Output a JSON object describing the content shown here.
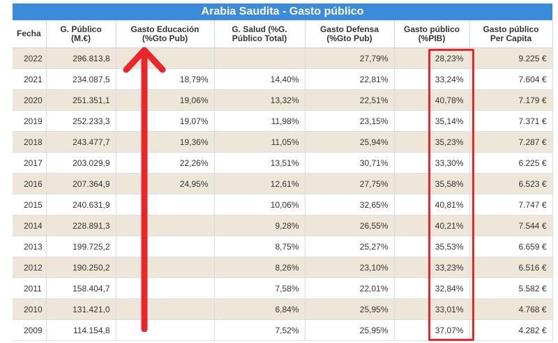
{
  "table": {
    "title": "Arabia Saudita - Gasto público",
    "headers": [
      [
        "Fecha",
        ""
      ],
      [
        "G. Público",
        "(M.€)"
      ],
      [
        "Gasto Educación",
        "(%Gto Pub)"
      ],
      [
        "G. Salud (%G.",
        "Público Total)"
      ],
      [
        "Gasto Defensa",
        "(%Gto Pub)"
      ],
      [
        "Gasto público",
        "(%PIB)"
      ],
      [
        "Gasto público",
        "Per Capita"
      ]
    ],
    "rows": [
      [
        "2022",
        "296.813,8",
        "",
        "",
        "27,79%",
        "28,23%",
        "9.225 €"
      ],
      [
        "2021",
        "234.087,5",
        "18,79%",
        "14,40%",
        "22,81%",
        "33,24%",
        "7.604 €"
      ],
      [
        "2020",
        "251.351,1",
        "19,06%",
        "13,32%",
        "22,51%",
        "40,78%",
        "7.179 €"
      ],
      [
        "2019",
        "252.233,3",
        "19,07%",
        "11,98%",
        "23,15%",
        "35,14%",
        "7.371 €"
      ],
      [
        "2018",
        "243.477,7",
        "19,36%",
        "11,05%",
        "25,94%",
        "35,23%",
        "7.287 €"
      ],
      [
        "2017",
        "203.029,9",
        "22,26%",
        "13,51%",
        "30,71%",
        "33,30%",
        "6.225 €"
      ],
      [
        "2016",
        "207.364,9",
        "24,95%",
        "12,61%",
        "27,75%",
        "35,58%",
        "6.523 €"
      ],
      [
        "2015",
        "240.631,9",
        "",
        "10,06%",
        "32,65%",
        "40,81%",
        "7.747 €"
      ],
      [
        "2014",
        "228.891,3",
        "",
        "9,28%",
        "26,55%",
        "40,21%",
        "7.544 €"
      ],
      [
        "2013",
        "199.725,2",
        "",
        "8,75%",
        "25,27%",
        "35,53%",
        "6.659 €"
      ],
      [
        "2012",
        "190.250,2",
        "",
        "8,26%",
        "23,10%",
        "33,23%",
        "6.516 €"
      ],
      [
        "2011",
        "158.404,7",
        "",
        "7,58%",
        "22,01%",
        "32,84%",
        "5.582 €"
      ],
      [
        "2010",
        "131.421,0",
        "",
        "6,84%",
        "25,95%",
        "33,01%",
        "4.768 €"
      ],
      [
        "2009",
        "114.154,8",
        "",
        "7,52%",
        "25,95%",
        "37,07%",
        "4.282 €"
      ]
    ]
  },
  "annotations": {
    "highlight_color": "#e8262b",
    "highlighted_column": "Gasto público (%PIB)",
    "arrow_icon": "up-arrow-icon"
  },
  "colors": {
    "title_bg": "#3b8bd9",
    "row_shade": "#eee7d9"
  }
}
